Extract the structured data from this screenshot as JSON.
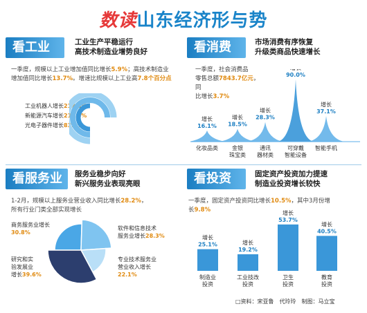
{
  "banner": {
    "prefix": "数读",
    "title": "山东经济形与势"
  },
  "sections": {
    "industry": {
      "heading": "看工业",
      "subtitle": [
        "工业生产平稳运行",
        "高技术制造业增势良好"
      ],
      "body": [
        "一季度，规模以上工业增加值同比增长",
        "5.9%",
        "；高技术",
        "制造业增加值同比增长",
        "13.7%",
        "。增速比规模以上工业高",
        "7.8",
        "个百分点"
      ],
      "bars": [
        {
          "label": "工业机器人增长",
          "value": "217.8%",
          "pct": 217.8
        },
        {
          "label": "新能源汽车增长",
          "value": "217.6%",
          "pct": 217.6
        },
        {
          "label": "光电子器件增长",
          "value": "83.8%",
          "pct": 83.8
        }
      ]
    },
    "consumption": {
      "heading": "看消费",
      "subtitle": [
        "市场消费有序恢复",
        "升级类商品快速增长"
      ],
      "body": [
        "一季度，社会消费品",
        "零售总额",
        "7843.7亿元",
        "，同",
        "比增长",
        "3.7%"
      ],
      "peaks": [
        {
          "label": "增长",
          "value": "16.1%",
          "name": [
            "化妆品类"
          ],
          "pct": 16.1
        },
        {
          "label": "增长",
          "value": "18.5%",
          "name": [
            "金银",
            "珠宝类"
          ],
          "pct": 18.5
        },
        {
          "label": "增长",
          "value": "28.3%",
          "name": [
            "通讯",
            "器材类"
          ],
          "pct": 28.3
        },
        {
          "label": "增长",
          "value": "90.0%",
          "name": [
            "可穿戴",
            "智能设备"
          ],
          "pct": 90.0
        },
        {
          "label": "增长",
          "value": "37.1%",
          "name": [
            "智能手机"
          ],
          "pct": 37.1
        }
      ]
    },
    "services": {
      "heading": "看服务业",
      "subtitle": [
        "服务业稳步向好",
        "新兴服务业表现亮眼"
      ],
      "body": [
        "1-2月，规模以上服务业营业收入同比增长",
        "28.2%",
        "，",
        "所有行业门类全部实现增长"
      ],
      "slices": [
        {
          "label": [
            "商务服务业增长"
          ],
          "value": "30.8%",
          "pct": 30.8,
          "color": "#4aa7e6"
        },
        {
          "label": [
            "软件和信息技术",
            "服务业增长"
          ],
          "value": "28.3%",
          "pct": 28.3,
          "color": "#7fc4f0"
        },
        {
          "label": [
            "专业技术服务业",
            "营业收入增长"
          ],
          "value": "22.1%",
          "pct": 22.1,
          "color": "#b9dff7"
        },
        {
          "label": [
            "研究和实",
            "验发展业",
            "增长"
          ],
          "value": "39.6%",
          "pct": 39.6,
          "color": "#2c3e6e"
        }
      ]
    },
    "investment": {
      "heading": "看投资",
      "subtitle": [
        "固定资产投资加力提速",
        "制造业投资增长较快"
      ],
      "body": [
        "一季度，固定资产投资同比增长",
        "10.5%",
        "，其中3月份增",
        "长",
        "9.8%"
      ],
      "chart_data": {
        "type": "bar",
        "categories": [
          [
            "制造业",
            "投资"
          ],
          [
            "工业技改",
            "投资"
          ],
          [
            "卫生",
            "投资"
          ],
          [
            "教育",
            "投资"
          ]
        ],
        "labels": [
          "增长",
          "增长",
          "增长",
          "增长"
        ],
        "values": [
          25.1,
          19.2,
          53.7,
          40.5
        ],
        "value_text": [
          "25.1%",
          "19.2%",
          "53.7%",
          "40.5%"
        ],
        "ylim": [
          0,
          60
        ]
      }
    }
  },
  "credit": "□资料：宋亚鲁　代玲玲　制图：马立宝",
  "colors": {
    "blue": "#1b7ec2",
    "orange": "#e08a10",
    "red": "#e63838"
  }
}
